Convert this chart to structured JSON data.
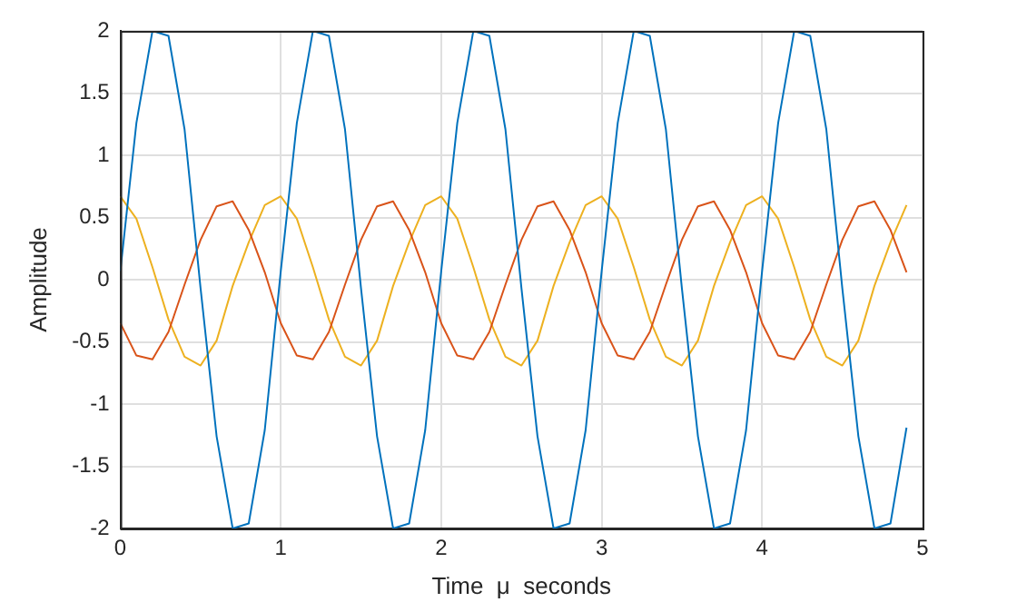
{
  "chart_data": {
    "type": "line",
    "xlabel": "Time  μ  seconds",
    "ylabel": "Amplitude",
    "x": [
      0,
      0.1,
      0.2,
      0.3,
      0.4,
      0.5,
      0.6,
      0.7,
      0.8,
      0.9,
      1,
      1.1,
      1.2,
      1.3,
      1.4,
      1.5,
      1.6,
      1.7,
      1.8,
      1.9,
      2,
      2.1,
      2.2,
      2.3,
      2.4,
      2.5,
      2.6,
      2.7,
      2.8,
      2.9,
      3,
      3.1,
      3.2,
      3.3,
      3.4,
      3.5,
      3.6,
      3.7,
      3.8,
      3.9,
      4,
      4.1,
      4.2,
      4.3,
      4.4,
      4.5,
      4.6,
      4.7,
      4.8,
      4.9
    ],
    "series": [
      {
        "color": "#0072bd",
        "values": [
          0.07,
          1.26,
          2.0,
          1.96,
          1.21,
          -0.07,
          -1.26,
          -2.0,
          -1.96,
          -1.21,
          0.07,
          1.26,
          2.0,
          1.96,
          1.21,
          -0.07,
          -1.26,
          -2.0,
          -1.96,
          -1.21,
          0.07,
          1.26,
          2.0,
          1.96,
          1.21,
          -0.07,
          -1.26,
          -2.0,
          -1.96,
          -1.21,
          0.07,
          1.26,
          2.0,
          1.96,
          1.21,
          -0.07,
          -1.26,
          -2.0,
          -1.96,
          -1.21,
          0.07,
          1.26,
          2.0,
          1.96,
          1.21,
          -0.07,
          -1.26,
          -2.0,
          -1.96,
          -1.19
        ]
      },
      {
        "color": "#d95319",
        "values": [
          -0.35,
          -0.61,
          -0.64,
          -0.42,
          -0.04,
          0.32,
          0.59,
          0.63,
          0.4,
          0.06,
          -0.35,
          -0.61,
          -0.64,
          -0.42,
          -0.04,
          0.32,
          0.59,
          0.63,
          0.4,
          0.06,
          -0.35,
          -0.61,
          -0.64,
          -0.42,
          -0.04,
          0.32,
          0.59,
          0.63,
          0.4,
          0.06,
          -0.35,
          -0.61,
          -0.64,
          -0.42,
          -0.04,
          0.32,
          0.59,
          0.63,
          0.4,
          0.06,
          -0.35,
          -0.61,
          -0.64,
          -0.42,
          -0.04,
          0.32,
          0.59,
          0.63,
          0.4,
          0.06
        ]
      },
      {
        "color": "#edb120",
        "values": [
          0.67,
          0.49,
          0.1,
          -0.32,
          -0.62,
          -0.69,
          -0.49,
          -0.05,
          0.3,
          0.6,
          0.67,
          0.49,
          0.1,
          -0.32,
          -0.62,
          -0.69,
          -0.49,
          -0.05,
          0.3,
          0.6,
          0.67,
          0.49,
          0.1,
          -0.32,
          -0.62,
          -0.69,
          -0.49,
          -0.05,
          0.3,
          0.6,
          0.67,
          0.49,
          0.1,
          -0.32,
          -0.62,
          -0.69,
          -0.49,
          -0.05,
          0.3,
          0.6,
          0.67,
          0.49,
          0.1,
          -0.32,
          -0.62,
          -0.69,
          -0.49,
          -0.05,
          0.3,
          0.6
        ]
      }
    ],
    "xlim": [
      0,
      5
    ],
    "xticks": [
      0,
      1,
      2,
      3,
      4,
      5
    ],
    "ylim": [
      -2,
      2
    ],
    "yticks": [
      -2,
      -1.5,
      -1,
      -0.5,
      0,
      0.5,
      1,
      1.5,
      2
    ],
    "grid": true,
    "legend": false,
    "marker": "none",
    "line_style": "solid"
  }
}
